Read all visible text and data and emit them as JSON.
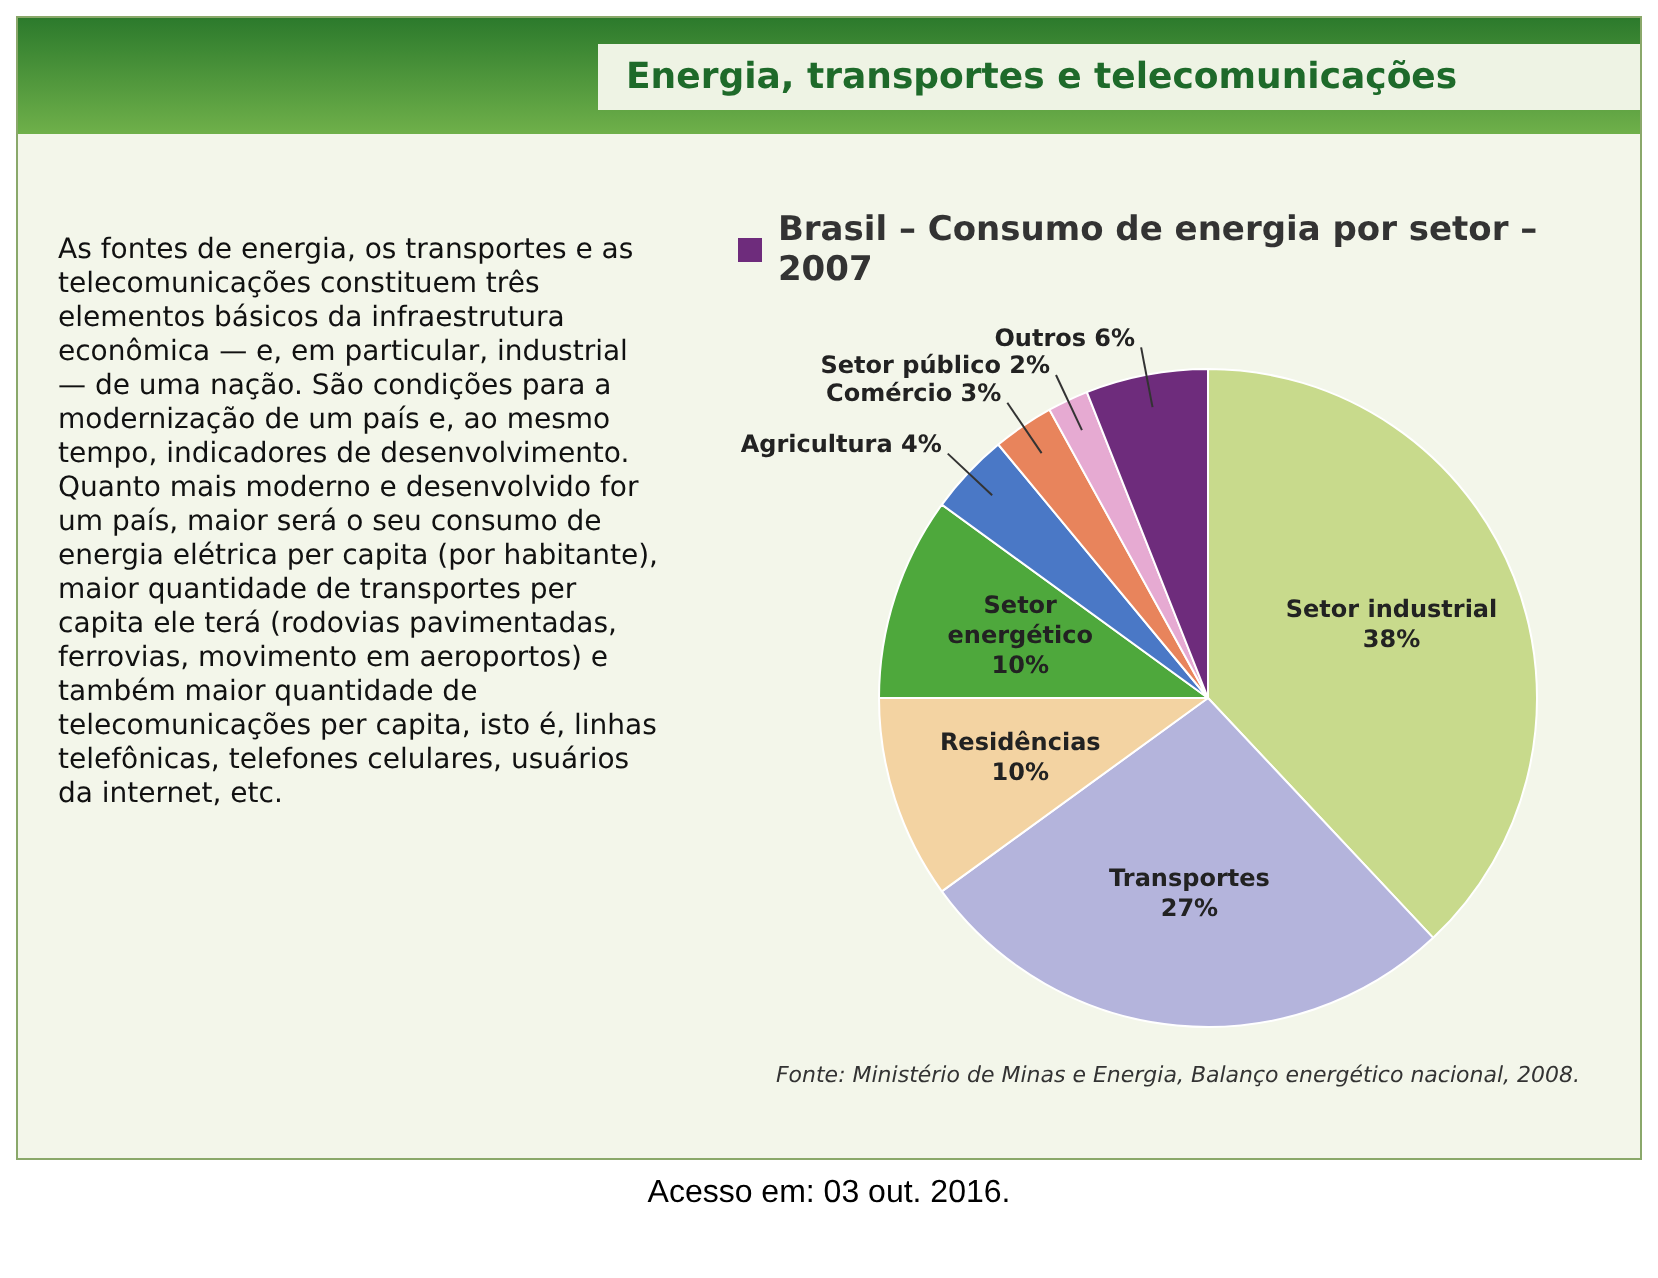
{
  "chart_data": {
    "type": "pie",
    "title": "Energia, transportes e telecomunicações",
    "subtitle": "Brasil – Consumo de energia por setor – 2007",
    "categories": [
      "Setor industrial",
      "Transportes",
      "Residências",
      "Setor energético",
      "Agricultura",
      "Comércio",
      "Setor público",
      "Outros"
    ],
    "values": [
      38,
      27,
      10,
      10,
      4,
      3,
      2,
      6
    ],
    "value_labels": [
      "38%",
      "27%",
      "10%",
      "10%",
      "4%",
      "3%",
      "2%",
      "6%"
    ],
    "colors": [
      "#c8da8c",
      "#b4b4dc",
      "#f3d3a2",
      "#4ea83c",
      "#4a78c6",
      "#e8845c",
      "#e6aad2",
      "#6e2c7c"
    ],
    "legend": false,
    "annotations": [
      "As fontes de energia, os transportes e as telecomunicações constituem três elementos básicos da infraestrutura econômica — e, em particular, industrial — de uma nação. São condições para a modernização de um país e, ao mesmo tempo, indicadores de desenvolvimento. Quanto mais moderno e desenvolvido for um país, maior será o seu consumo de energia elétrica per capita (por habitante), maior quantidade de transportes per capita ele terá (rodovias pavimentadas, ferrovias, movimento em aeroportos) e também maior quantidade de telecomunicações per capita, isto é, linhas telefônicas, telefones celulares, usuários da internet, etc.",
      "Fonte: Ministério de Minas e Energia, Balanço energético nacional, 2008.",
      "Acesso em: 03 out. 2016."
    ]
  }
}
